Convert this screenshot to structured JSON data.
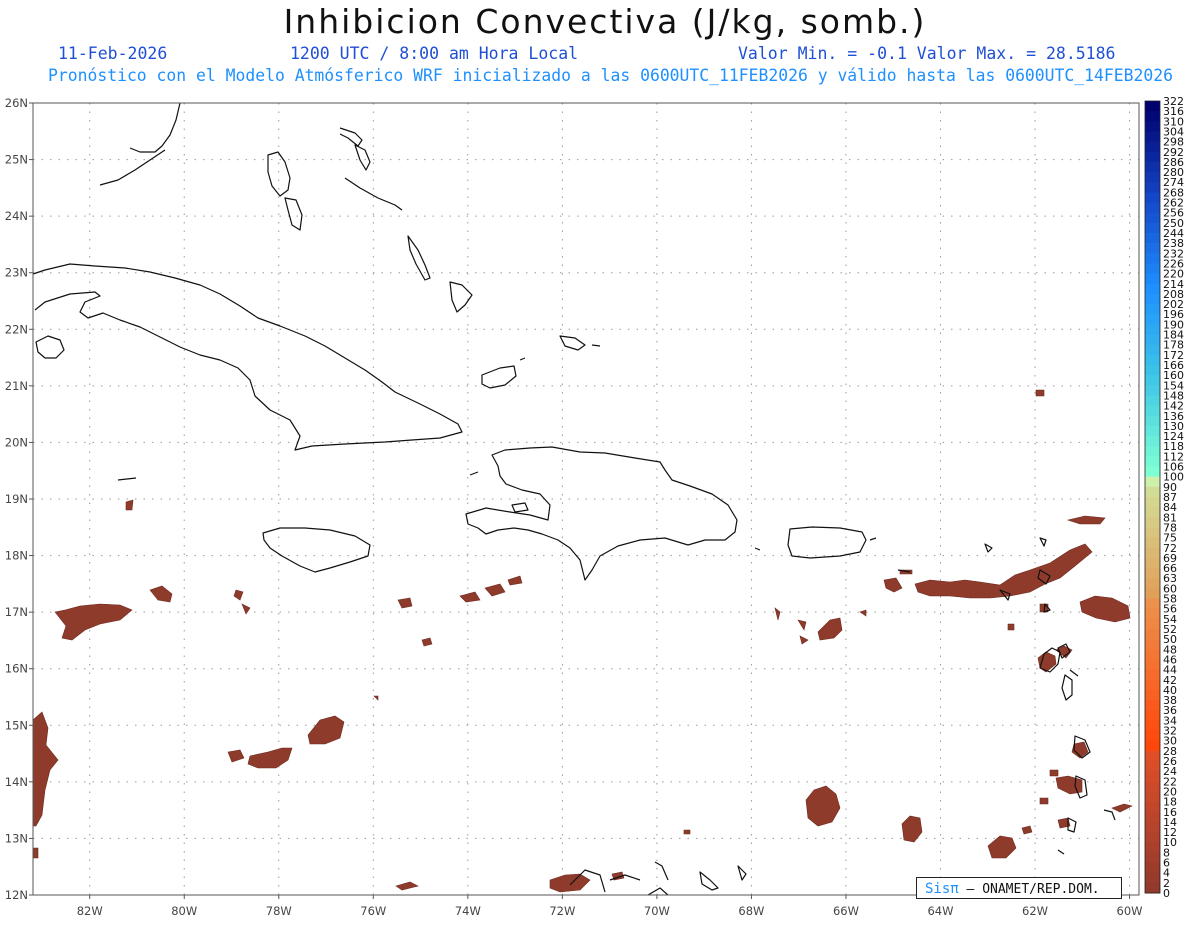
{
  "title": "Inhibicion Convectiva (J/kg, somb.)",
  "header": {
    "date": "11-Feb-2026",
    "time": "1200 UTC / 8:00 am Hora Local",
    "range": "Valor Min. = -0.1  Valor Max. = 28.5186"
  },
  "subtitle": "Pronóstico con el Modelo Atmósferico WRF inicializado a las 0600UTC_11FEB2026 y válido hasta las  0600UTC_14FEB2026",
  "map": {
    "lon_range": [
      -83.2,
      -59.8
    ],
    "lat_range": [
      12,
      26
    ],
    "lon_ticks": [
      "82W",
      "80W",
      "78W",
      "76W",
      "74W",
      "72W",
      "70W",
      "68W",
      "66W",
      "64W",
      "62W",
      "60W"
    ],
    "lat_ticks": [
      "26N",
      "25N",
      "24N",
      "23N",
      "22N",
      "21N",
      "20N",
      "19N",
      "18N",
      "17N",
      "16N",
      "15N",
      "14N",
      "13N",
      "12N"
    ],
    "grid": true,
    "fill_color": "#8e3b2c"
  },
  "colorbar": {
    "labels": [
      "322",
      "316",
      "310",
      "304",
      "298",
      "292",
      "286",
      "280",
      "274",
      "268",
      "262",
      "256",
      "250",
      "244",
      "238",
      "232",
      "226",
      "220",
      "214",
      "208",
      "202",
      "196",
      "190",
      "184",
      "178",
      "172",
      "166",
      "160",
      "154",
      "148",
      "142",
      "136",
      "130",
      "124",
      "118",
      "112",
      "106",
      "100",
      "90",
      "87",
      "84",
      "81",
      "78",
      "75",
      "72",
      "69",
      "66",
      "63",
      "60",
      "58",
      "56",
      "54",
      "52",
      "50",
      "48",
      "46",
      "44",
      "42",
      "40",
      "38",
      "36",
      "34",
      "32",
      "30",
      "28",
      "26",
      "24",
      "22",
      "20",
      "18",
      "16",
      "14",
      "12",
      "10",
      "8",
      "6",
      "4",
      "2",
      "0"
    ]
  },
  "branding": {
    "logo": "Sisπ",
    "text": "– ONAMET/REP.DOM."
  }
}
